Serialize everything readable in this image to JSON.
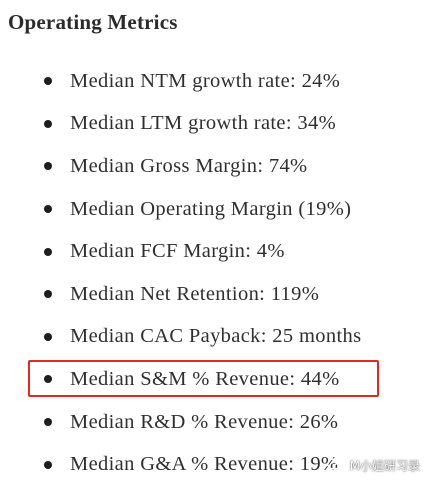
{
  "heading": "Operating Metrics",
  "metrics": [
    {
      "text": "Median NTM growth rate: 24%"
    },
    {
      "text": "Median LTM growth rate: 34%"
    },
    {
      "text": "Median Gross Margin: 74%"
    },
    {
      "text": "Median Operating Margin (19%)"
    },
    {
      "text": "Median FCF Margin: 4%"
    },
    {
      "text": "Median Net Retention: 119%"
    },
    {
      "text": "Median CAC Payback: 25 months"
    },
    {
      "text": "Median S&M % Revenue: 44%"
    },
    {
      "text": "Median R&D % Revenue: 26%"
    },
    {
      "text": "Median G&A % Revenue: 19%"
    }
  ],
  "highlight": {
    "item_index": 7,
    "color": "#e3281f"
  },
  "watermark": {
    "icon": "wechat-icon",
    "text": "M小姐研习录"
  }
}
